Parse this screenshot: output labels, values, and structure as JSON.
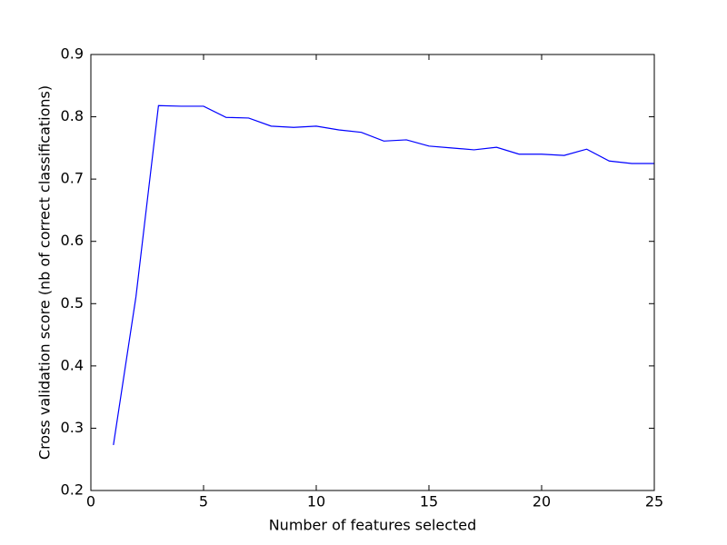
{
  "chart_data": {
    "type": "line",
    "x_label": "Number of features selected",
    "y_label": "Cross validation score (nb of correct classifications)",
    "x": [
      1,
      2,
      3,
      4,
      5,
      6,
      7,
      8,
      9,
      10,
      11,
      12,
      13,
      14,
      15,
      16,
      17,
      18,
      19,
      20,
      21,
      22,
      23,
      24,
      25
    ],
    "series": [
      {
        "name": null,
        "color": "#0000ff",
        "values": [
          0.273,
          0.511,
          0.818,
          0.817,
          0.817,
          0.799,
          0.798,
          0.785,
          0.783,
          0.785,
          0.779,
          0.775,
          0.761,
          0.763,
          0.753,
          0.75,
          0.747,
          0.751,
          0.74,
          0.74,
          0.738,
          0.748,
          0.729,
          0.725,
          0.725
        ]
      }
    ],
    "xlim": [
      0,
      25
    ],
    "xticks": [
      0,
      5,
      10,
      15,
      20,
      25
    ],
    "ylim": [
      0.2,
      0.9
    ],
    "yticks": [
      0.2,
      0.3,
      0.4,
      0.5,
      0.6,
      0.7,
      0.8,
      0.9
    ],
    "grid": false
  }
}
